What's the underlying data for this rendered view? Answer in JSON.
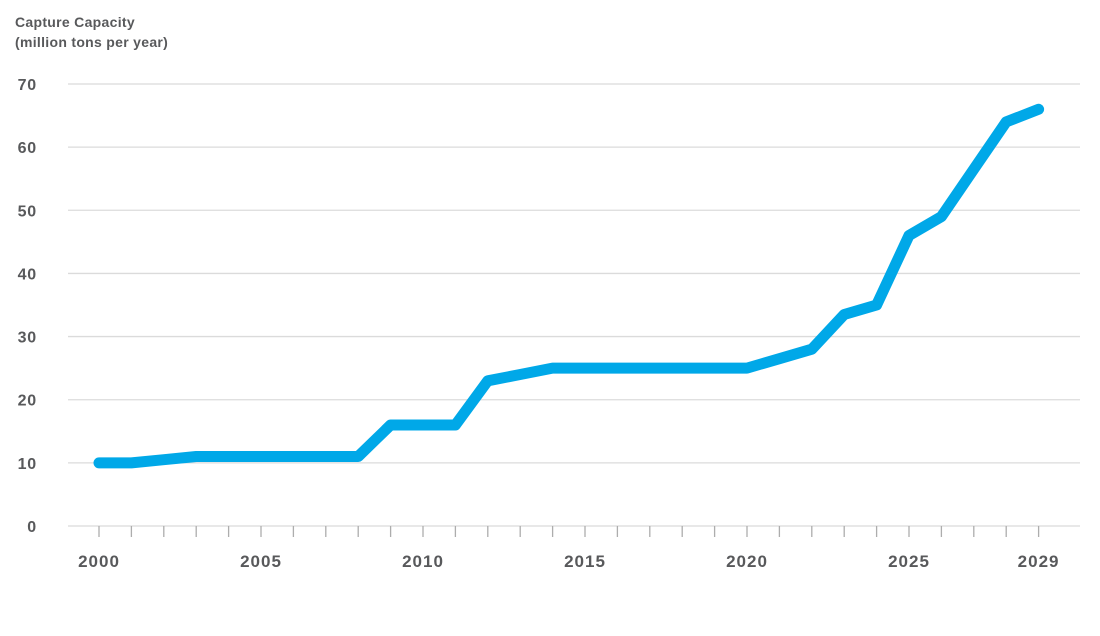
{
  "chart": {
    "title_line1": "Capture Capacity",
    "title_line2": "(million tons per year)"
  },
  "chart_data": {
    "type": "line",
    "title": "Capture Capacity (million tons per year)",
    "ylabel": "Capture Capacity (million tons per year)",
    "xlabel": "",
    "legend": "none",
    "grid": "horizontal",
    "ylim": [
      0,
      70
    ],
    "y_ticks": [
      0,
      10,
      20,
      30,
      40,
      50,
      60,
      70
    ],
    "x_tick_years": [
      2000,
      2005,
      2010,
      2015,
      2020,
      2025,
      2029
    ],
    "x_tick_labels": [
      "2000",
      "2005",
      "2010",
      "2015",
      "2020",
      "2025",
      "2029"
    ],
    "x": [
      2000,
      2001,
      2002,
      2003,
      2004,
      2005,
      2006,
      2007,
      2008,
      2009,
      2010,
      2011,
      2012,
      2013,
      2014,
      2015,
      2016,
      2017,
      2018,
      2019,
      2020,
      2021,
      2022,
      2023,
      2024,
      2025,
      2026,
      2027,
      2028,
      2029
    ],
    "series": [
      {
        "name": "Capture capacity",
        "values": [
          10,
          10,
          10.5,
          11,
          11,
          11,
          11,
          11,
          11,
          16,
          16,
          16,
          23,
          24,
          25,
          25,
          25,
          25,
          25,
          25,
          25,
          26.5,
          28,
          33.5,
          35,
          46,
          49,
          56.5,
          64,
          66
        ]
      }
    ],
    "colors": {
      "line": "#00A8E8",
      "label": "#58595B",
      "grid": "#DBDBDB",
      "tick": "#ADADAD",
      "background": "#FFFFFF"
    }
  }
}
